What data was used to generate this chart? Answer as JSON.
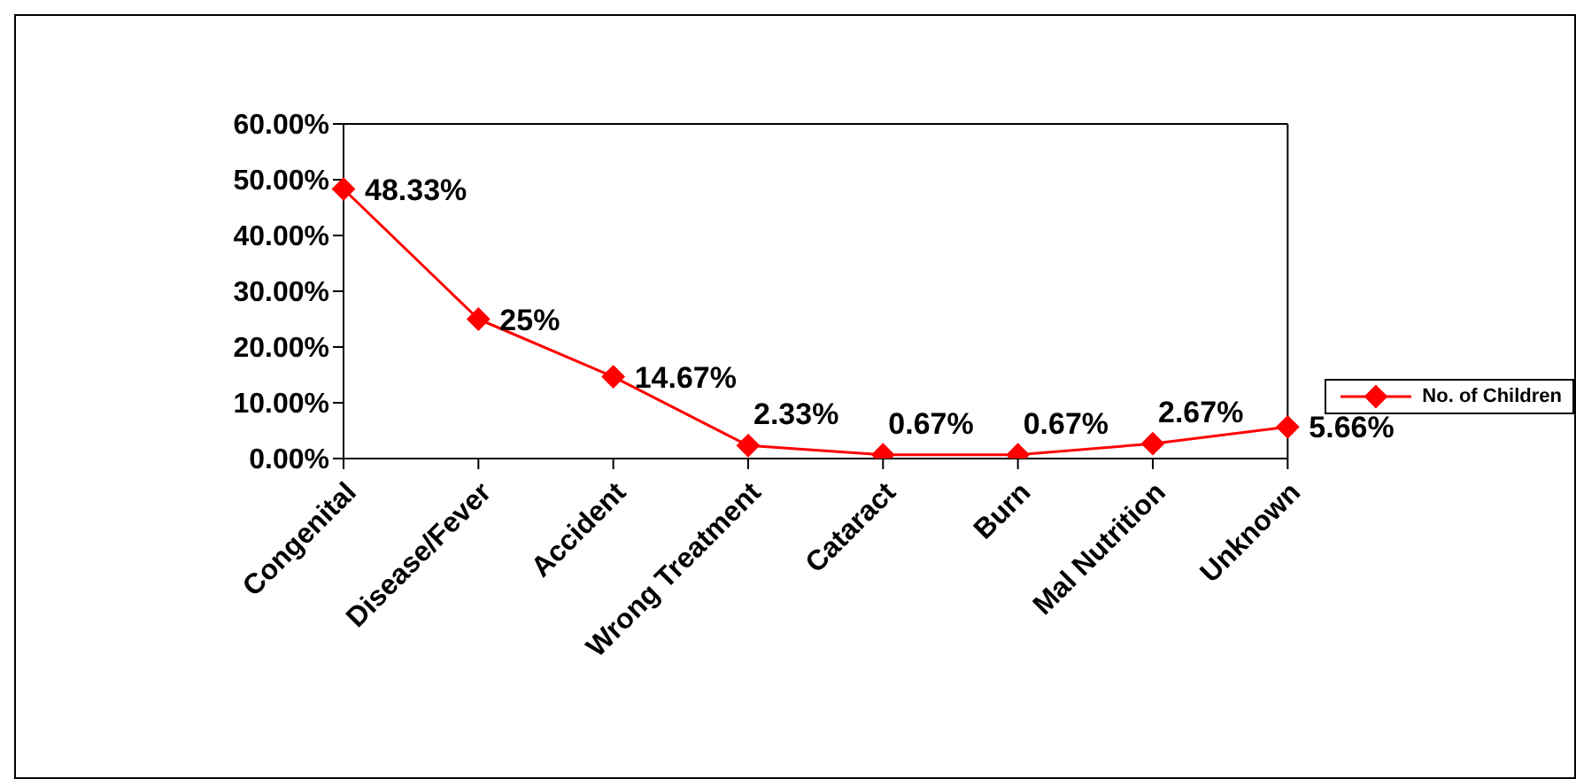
{
  "chart_data": {
    "type": "line",
    "categories": [
      "Congenital",
      "Disease/Fever",
      "Accident",
      "Wrong Treatment",
      "Cataract",
      "Burn",
      "Mal Nutrition",
      "Unknown"
    ],
    "series": [
      {
        "name": "No. of Children",
        "color": "#ff0000",
        "values": [
          48.33,
          25,
          14.67,
          2.33,
          0.67,
          0.67,
          2.67,
          5.66
        ],
        "value_labels": [
          "48.33%",
          "25%",
          "14.67%",
          "2.33%",
          "0.67%",
          "0.67%",
          "2.67%",
          "5.66%"
        ]
      }
    ],
    "ylim": [
      0,
      60
    ],
    "yticks": [
      {
        "value": 0,
        "label": "0.00%"
      },
      {
        "value": 10,
        "label": "10.00%"
      },
      {
        "value": 20,
        "label": "20.00%"
      },
      {
        "value": 30,
        "label": "30.00%"
      },
      {
        "value": 40,
        "label": "40.00%"
      },
      {
        "value": 50,
        "label": "50.00%"
      },
      {
        "value": 60,
        "label": "60.00%"
      }
    ],
    "marker": "diamond",
    "legend": "right",
    "grid": false
  }
}
